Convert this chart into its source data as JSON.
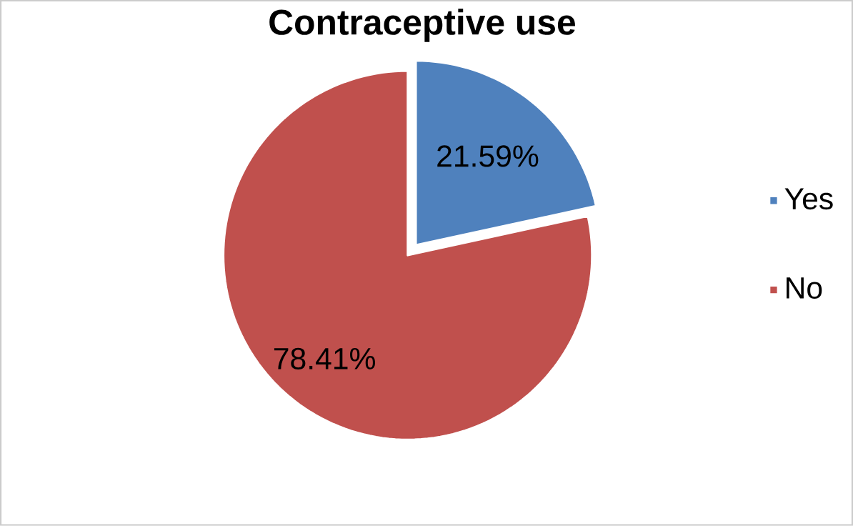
{
  "chart_data": {
    "type": "pie",
    "title": "Contraceptive use",
    "categories": [
      "Yes",
      "No"
    ],
    "values": [
      21.59,
      78.41
    ],
    "colors": [
      "#4f81bd",
      "#c0504d"
    ],
    "value_labels": [
      "21.59%",
      "78.41%"
    ],
    "legend": "right"
  }
}
